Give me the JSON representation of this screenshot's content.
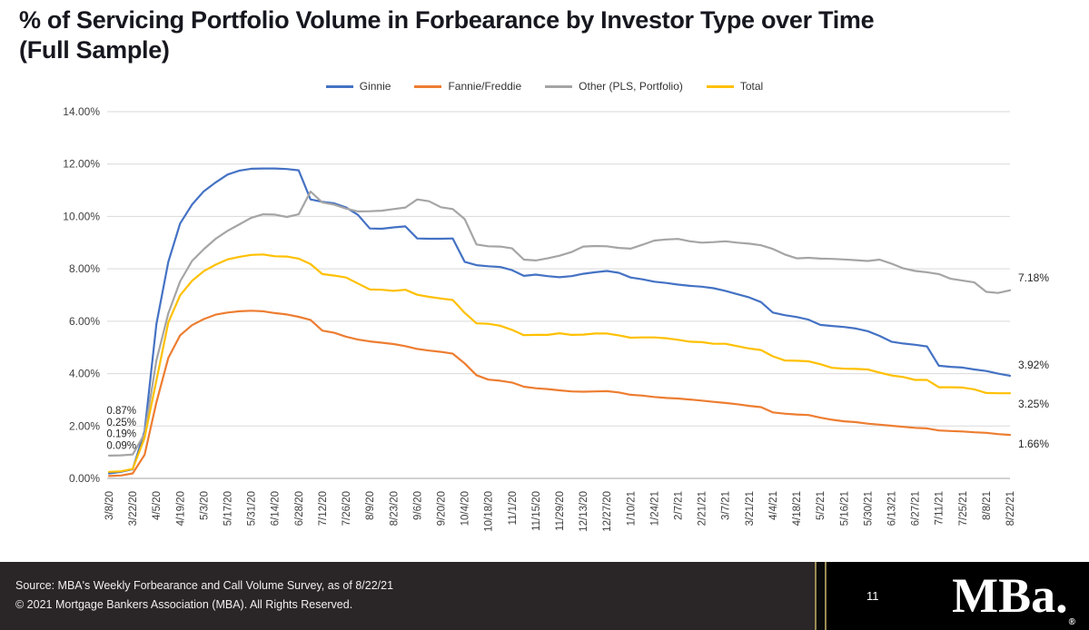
{
  "page": {
    "title": "% of Servicing Portfolio Volume in Forbearance by Investor Type over Time",
    "subtitle": "(Full Sample)"
  },
  "chart_data": {
    "type": "line",
    "title": "% of Servicing Portfolio Volume in Forbearance by Investor Type over Time (Full Sample)",
    "xlabel": "",
    "ylabel": "",
    "ylim": [
      0,
      14
    ],
    "grid": "horizontal",
    "legend_position": "top-center",
    "yticks": [
      "0.00%",
      "2.00%",
      "4.00%",
      "6.00%",
      "8.00%",
      "10.00%",
      "12.00%",
      "14.00%"
    ],
    "x_label_every": 2,
    "x": [
      "3/8/20",
      "3/15/20",
      "3/22/20",
      "3/29/20",
      "4/5/20",
      "4/12/20",
      "4/19/20",
      "4/26/20",
      "5/3/20",
      "5/10/20",
      "5/17/20",
      "5/24/20",
      "5/31/20",
      "6/7/20",
      "6/14/20",
      "6/21/20",
      "6/28/20",
      "7/5/20",
      "7/12/20",
      "7/19/20",
      "7/26/20",
      "8/2/20",
      "8/9/20",
      "8/16/20",
      "8/23/20",
      "8/30/20",
      "9/6/20",
      "9/13/20",
      "9/20/20",
      "9/27/20",
      "10/4/20",
      "10/11/20",
      "10/18/20",
      "10/25/20",
      "11/1/20",
      "11/8/20",
      "11/15/20",
      "11/22/20",
      "11/29/20",
      "12/6/20",
      "12/13/20",
      "12/20/20",
      "12/27/20",
      "1/3/21",
      "1/10/21",
      "1/17/21",
      "1/24/21",
      "1/31/21",
      "2/7/21",
      "2/14/21",
      "2/21/21",
      "2/28/21",
      "3/7/21",
      "3/14/21",
      "3/21/21",
      "3/28/21",
      "4/4/21",
      "4/11/21",
      "4/18/21",
      "4/25/21",
      "5/2/21",
      "5/9/21",
      "5/16/21",
      "5/23/21",
      "5/30/21",
      "6/6/21",
      "6/13/21",
      "6/20/21",
      "6/27/21",
      "7/4/21",
      "7/11/21",
      "7/18/21",
      "7/25/21",
      "8/1/21",
      "8/8/21",
      "8/15/21",
      "8/22/21"
    ],
    "series": [
      {
        "name": "Ginnie",
        "color": "#4472C4",
        "start_label": "0.19%",
        "end_label": "3.92%",
        "values": [
          0.19,
          0.25,
          0.35,
          1.8,
          5.89,
          8.26,
          9.73,
          10.45,
          10.96,
          11.3,
          11.6,
          11.75,
          11.82,
          11.83,
          11.83,
          11.81,
          11.76,
          10.65,
          10.56,
          10.5,
          10.34,
          10.06,
          9.54,
          9.53,
          9.58,
          9.62,
          9.16,
          9.15,
          9.15,
          9.16,
          8.27,
          8.14,
          8.1,
          8.07,
          7.95,
          7.73,
          7.78,
          7.72,
          7.68,
          7.72,
          7.81,
          7.87,
          7.92,
          7.85,
          7.67,
          7.6,
          7.51,
          7.46,
          7.4,
          7.35,
          7.32,
          7.26,
          7.16,
          7.03,
          6.91,
          6.73,
          6.33,
          6.23,
          6.16,
          6.06,
          5.86,
          5.82,
          5.78,
          5.72,
          5.62,
          5.44,
          5.22,
          5.15,
          5.1,
          5.04,
          4.3,
          4.26,
          4.23,
          4.16,
          4.1,
          4.0,
          3.92
        ]
      },
      {
        "name": "Fannie/Freddie",
        "color": "#ED7D31",
        "start_label": "0.09%",
        "end_label": "1.66%",
        "values": [
          0.09,
          0.11,
          0.19,
          0.9,
          2.9,
          4.6,
          5.46,
          5.85,
          6.08,
          6.25,
          6.33,
          6.38,
          6.4,
          6.38,
          6.31,
          6.26,
          6.17,
          6.05,
          5.64,
          5.56,
          5.41,
          5.3,
          5.23,
          5.18,
          5.13,
          5.05,
          4.94,
          4.88,
          4.83,
          4.76,
          4.39,
          3.94,
          3.77,
          3.73,
          3.66,
          3.5,
          3.44,
          3.41,
          3.36,
          3.32,
          3.31,
          3.32,
          3.33,
          3.28,
          3.19,
          3.16,
          3.11,
          3.07,
          3.05,
          3.01,
          2.97,
          2.92,
          2.88,
          2.83,
          2.77,
          2.72,
          2.52,
          2.47,
          2.44,
          2.42,
          2.32,
          2.24,
          2.18,
          2.15,
          2.09,
          2.05,
          2.01,
          1.97,
          1.93,
          1.91,
          1.83,
          1.81,
          1.79,
          1.76,
          1.74,
          1.69,
          1.66
        ]
      },
      {
        "name": "Other (PLS, Portfolio)",
        "color": "#A5A5A5",
        "start_label": "0.87%",
        "end_label": "7.18%",
        "values": [
          0.87,
          0.88,
          0.91,
          1.7,
          4.5,
          6.3,
          7.52,
          8.3,
          8.75,
          9.15,
          9.45,
          9.7,
          9.95,
          10.08,
          10.07,
          9.98,
          10.08,
          10.95,
          10.53,
          10.45,
          10.3,
          10.19,
          10.2,
          10.22,
          10.28,
          10.34,
          10.65,
          10.58,
          10.35,
          10.28,
          9.9,
          8.93,
          8.86,
          8.85,
          8.78,
          8.35,
          8.32,
          8.4,
          8.5,
          8.64,
          8.85,
          8.87,
          8.86,
          8.8,
          8.77,
          8.92,
          9.08,
          9.12,
          9.14,
          9.05,
          9.0,
          9.02,
          9.05,
          9.0,
          8.96,
          8.9,
          8.76,
          8.55,
          8.4,
          8.42,
          8.39,
          8.38,
          8.36,
          8.33,
          8.3,
          8.35,
          8.2,
          8.02,
          7.92,
          7.87,
          7.8,
          7.62,
          7.55,
          7.48,
          7.12,
          7.08,
          7.18
        ]
      },
      {
        "name": "Total",
        "color": "#FFC000",
        "start_label": "0.25%",
        "end_label": "3.25%",
        "values": [
          0.25,
          0.27,
          0.36,
          1.55,
          3.74,
          5.95,
          6.99,
          7.54,
          7.91,
          8.16,
          8.36,
          8.46,
          8.53,
          8.55,
          8.48,
          8.47,
          8.39,
          8.18,
          7.8,
          7.74,
          7.67,
          7.44,
          7.21,
          7.2,
          7.16,
          7.2,
          7.01,
          6.93,
          6.87,
          6.81,
          6.32,
          5.92,
          5.9,
          5.83,
          5.67,
          5.47,
          5.48,
          5.48,
          5.54,
          5.48,
          5.49,
          5.53,
          5.53,
          5.46,
          5.37,
          5.38,
          5.38,
          5.35,
          5.29,
          5.22,
          5.2,
          5.14,
          5.14,
          5.05,
          4.96,
          4.9,
          4.66,
          4.5,
          4.49,
          4.47,
          4.36,
          4.22,
          4.19,
          4.18,
          4.16,
          4.04,
          3.93,
          3.87,
          3.76,
          3.76,
          3.48,
          3.48,
          3.47,
          3.4,
          3.26,
          3.25,
          3.25
        ]
      }
    ],
    "start_labels": [
      "0.87%",
      "0.25%",
      "0.19%",
      "0.09%"
    ]
  },
  "footer": {
    "source_line1": "Source: MBA's Weekly Forbearance and Call Volume Survey, as of 8/22/21",
    "source_line2": "© 2021 Mortgage Bankers Association (MBA). All Rights Reserved.",
    "page_number": "11",
    "logo_text": "MBa.",
    "registered_mark": "®",
    "divider_color": "#9c8b53"
  }
}
